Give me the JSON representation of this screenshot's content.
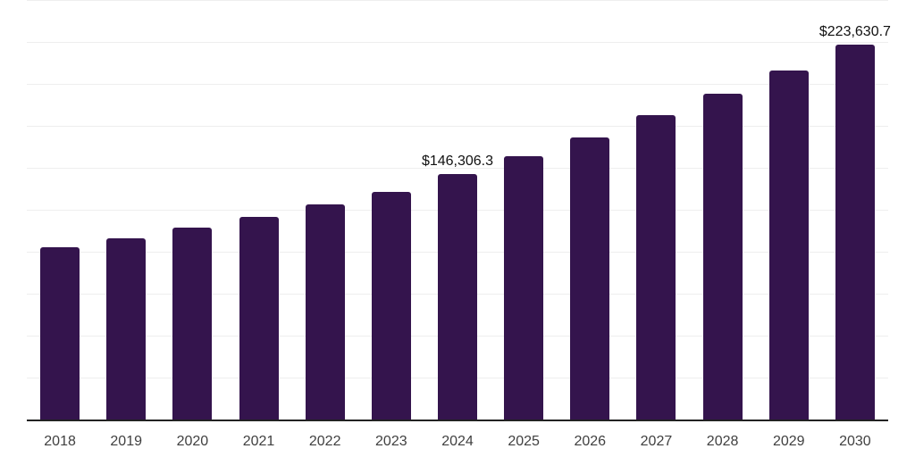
{
  "chart_data": {
    "type": "bar",
    "title": "",
    "xlabel": "",
    "ylabel": "",
    "categories": [
      "2018",
      "2019",
      "2020",
      "2021",
      "2022",
      "2023",
      "2024",
      "2025",
      "2026",
      "2027",
      "2028",
      "2029",
      "2030"
    ],
    "values": [
      102800,
      108100,
      114500,
      120900,
      128300,
      135800,
      146306.3,
      157000,
      168200,
      181500,
      194200,
      208000,
      223630.7
    ],
    "data_labels": [
      {
        "category": "2024",
        "text": "$146,306.3"
      },
      {
        "category": "2030",
        "text": "$223,630.7"
      }
    ],
    "ylim": [
      0,
      250000
    ],
    "gridline_step": 25000,
    "grid": "horizontal",
    "legend": "none",
    "y_tick_labels": "none",
    "colors": {
      "bar": "#34144D",
      "axis": "#222222",
      "gridline": "#EEEEEE",
      "data_label": "#111111",
      "tick_label": "#404040",
      "background": "#FFFFFF"
    }
  }
}
